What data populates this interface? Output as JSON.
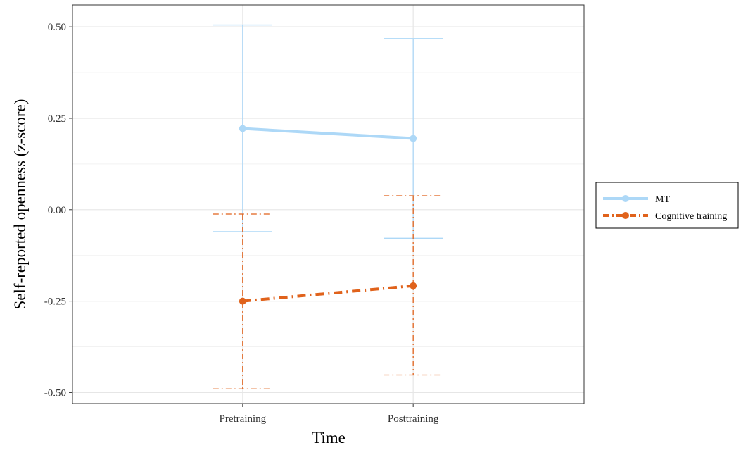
{
  "chart_data": {
    "type": "line",
    "title": "",
    "xlabel": "Time",
    "ylabel": "Self-reported openness (z-score)",
    "categories": [
      "Pretraining",
      "Posttraining"
    ],
    "ylim": [
      -0.53,
      0.56
    ],
    "yticks": [
      0.5,
      0.25,
      0.0,
      -0.25,
      -0.5
    ],
    "ytick_labels": [
      "0.50",
      "0.25",
      "0.00",
      "-0.25",
      "-0.50"
    ],
    "grid": true,
    "legend_position": "right",
    "series": [
      {
        "name": "MT",
        "color": "#ADD8F7",
        "line_style": "solid",
        "values": [
          0.222,
          0.195
        ],
        "error_low": [
          -0.06,
          -0.078
        ],
        "error_high": [
          0.505,
          0.468
        ]
      },
      {
        "name": "Cognitive training",
        "color": "#E0621B",
        "line_style": "dashdot",
        "values": [
          -0.25,
          -0.208
        ],
        "error_low": [
          -0.49,
          -0.452
        ],
        "error_high": [
          -0.012,
          0.038
        ]
      }
    ]
  }
}
